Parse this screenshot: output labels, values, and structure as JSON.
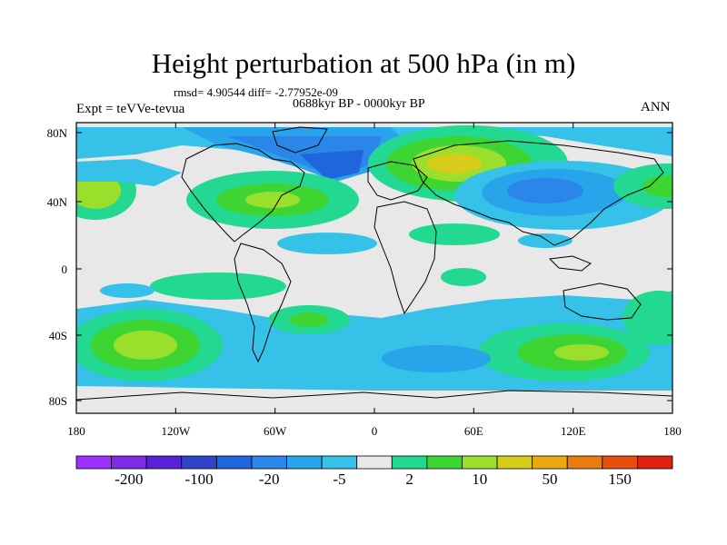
{
  "figure": {
    "title": "Height perturbation at 500 hPa (in m)",
    "stats": "rmsd= 4.90544  diff= -2.77952e-09",
    "period": "0688kyr BP - 0000kyr BP",
    "experiment": "Expt = teVVe-tevua",
    "season": "ANN"
  },
  "axes": {
    "x_ticks": [
      "180",
      "120W",
      "60W",
      "0",
      "60E",
      "120E",
      "180"
    ],
    "y_ticks": [
      "80N",
      "40N",
      "0",
      "40S",
      "80S"
    ]
  },
  "colorbar": {
    "colors": [
      "#9b30ff",
      "#7d2be6",
      "#5a22d6",
      "#2f44c9",
      "#1f66dd",
      "#2a86e8",
      "#27a4ea",
      "#35c1e8",
      "#e8e8e8",
      "#23d890",
      "#3ed432",
      "#9adf2b",
      "#d7cc19",
      "#e8a911",
      "#e77d10",
      "#e5500f",
      "#e02010"
    ],
    "labels": [
      "-200",
      "-100",
      "-20",
      "-5",
      "2",
      "10",
      "50",
      "150"
    ],
    "background": "#e8e8e8"
  }
}
